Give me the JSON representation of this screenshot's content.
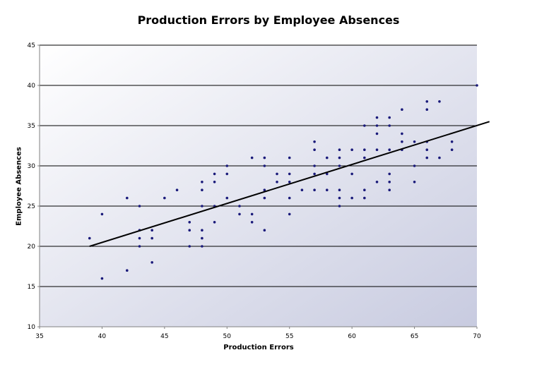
{
  "chart_data": {
    "type": "scatter",
    "title": "Production Errors by Employee Absences",
    "xlabel": "Production Errors",
    "ylabel": "Employee Absences",
    "xlim": [
      35,
      70
    ],
    "ylim": [
      10,
      45
    ],
    "x_ticks": [
      "35",
      "40",
      "45",
      "50",
      "55",
      "60",
      "65",
      "70"
    ],
    "y_ticks": [
      "10",
      "15",
      "20",
      "25",
      "30",
      "35",
      "40",
      "45"
    ],
    "grid": "horizontal",
    "legend": "none",
    "colors": {
      "points": "#1a1a7a",
      "trendline": "#000000",
      "gridline": "#000000",
      "background_light": "#ffffff",
      "background_dark": "#c8cbe0"
    },
    "trendline": {
      "x": [
        39,
        71
      ],
      "y": [
        20,
        35.5
      ]
    },
    "series": [
      {
        "points": [
          [
            39,
            21
          ],
          [
            40,
            24
          ],
          [
            40,
            16
          ],
          [
            42,
            26
          ],
          [
            42,
            17
          ],
          [
            43,
            25
          ],
          [
            43,
            22
          ],
          [
            43,
            21
          ],
          [
            43,
            20
          ],
          [
            44,
            22
          ],
          [
            44,
            21
          ],
          [
            44,
            18
          ],
          [
            45,
            26
          ],
          [
            46,
            27
          ],
          [
            47,
            23
          ],
          [
            47,
            22
          ],
          [
            47,
            20
          ],
          [
            48,
            28
          ],
          [
            48,
            27
          ],
          [
            48,
            25
          ],
          [
            48,
            22
          ],
          [
            48,
            21
          ],
          [
            48,
            20
          ],
          [
            49,
            29
          ],
          [
            49,
            28
          ],
          [
            49,
            25
          ],
          [
            49,
            23
          ],
          [
            50,
            30
          ],
          [
            50,
            29
          ],
          [
            50,
            26
          ],
          [
            51,
            25
          ],
          [
            51,
            24
          ],
          [
            52,
            31
          ],
          [
            52,
            24
          ],
          [
            52,
            23
          ],
          [
            53,
            31
          ],
          [
            53,
            30
          ],
          [
            53,
            27
          ],
          [
            53,
            26
          ],
          [
            53,
            22
          ],
          [
            54,
            29
          ],
          [
            54,
            28
          ],
          [
            55,
            31
          ],
          [
            55,
            29
          ],
          [
            55,
            28
          ],
          [
            55,
            26
          ],
          [
            55,
            24
          ],
          [
            56,
            27
          ],
          [
            57,
            33
          ],
          [
            57,
            32
          ],
          [
            57,
            30
          ],
          [
            57,
            29
          ],
          [
            57,
            27
          ],
          [
            58,
            31
          ],
          [
            58,
            29
          ],
          [
            58,
            27
          ],
          [
            59,
            32
          ],
          [
            59,
            31
          ],
          [
            59,
            30
          ],
          [
            59,
            27
          ],
          [
            59,
            26
          ],
          [
            59,
            25
          ],
          [
            60,
            32
          ],
          [
            60,
            29
          ],
          [
            60,
            26
          ],
          [
            61,
            35
          ],
          [
            61,
            32
          ],
          [
            61,
            31
          ],
          [
            61,
            27
          ],
          [
            61,
            26
          ],
          [
            62,
            36
          ],
          [
            62,
            35
          ],
          [
            62,
            34
          ],
          [
            62,
            32
          ],
          [
            62,
            28
          ],
          [
            63,
            36
          ],
          [
            63,
            35
          ],
          [
            63,
            32
          ],
          [
            63,
            29
          ],
          [
            63,
            28
          ],
          [
            63,
            27
          ],
          [
            64,
            37
          ],
          [
            64,
            34
          ],
          [
            64,
            33
          ],
          [
            64,
            32
          ],
          [
            65,
            33
          ],
          [
            65,
            30
          ],
          [
            65,
            28
          ],
          [
            66,
            38
          ],
          [
            66,
            37
          ],
          [
            66,
            33
          ],
          [
            66,
            32
          ],
          [
            66,
            31
          ],
          [
            67,
            38
          ],
          [
            67,
            31
          ],
          [
            68,
            33
          ],
          [
            68,
            32
          ],
          [
            70,
            40
          ]
        ]
      }
    ]
  }
}
